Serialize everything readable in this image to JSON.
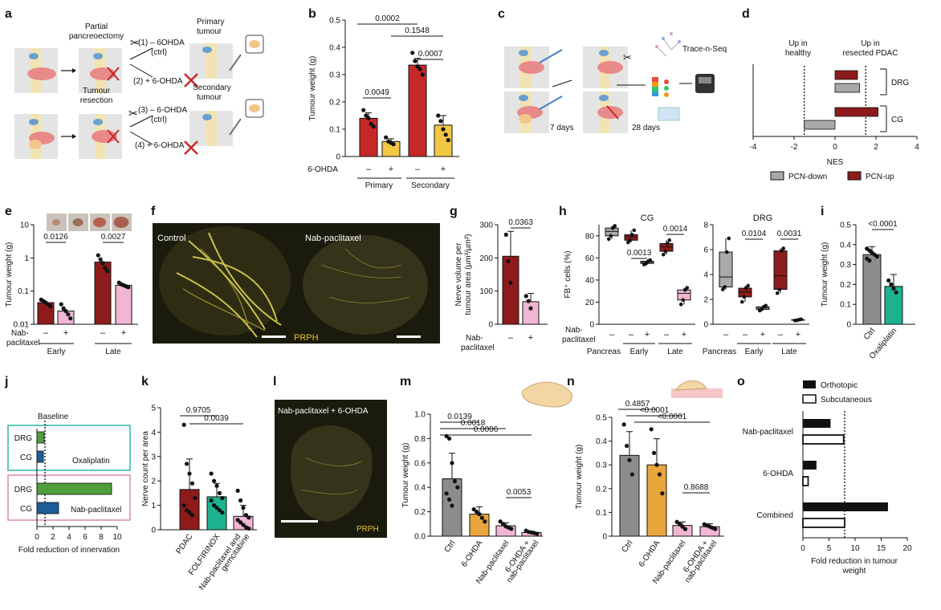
{
  "colors": {
    "red": "#c62828",
    "yellow": "#f2c744",
    "darkred": "#8e1b1b",
    "pink": "#f0b6d3",
    "grey": "#8c8c8c",
    "teal": "#1db38f",
    "green": "#4f9e3c",
    "blue": "#1f5c99",
    "orange": "#e9a63c",
    "tealBox": "#2fb5a5",
    "pinkBox": "#d987b5",
    "micro": "#1a1a0d",
    "nerve": "#e6dc52"
  },
  "panels": {
    "a": {
      "label": "a",
      "partial": "Partial",
      "pancreatectomy": "pancreoectomy",
      "t1": "(1) – 6OHDA",
      "ctrl": "(ctrl)",
      "t2": "(2) + 6-OHDA",
      "primary": "Primary",
      "tumour": "tumour",
      "resection1": "Tumour",
      "resection2": "resection",
      "t3": "(3) – 6-OHDA",
      "t4": "(4) + 6-OHDA",
      "secondary": "Secondary"
    },
    "b": {
      "label": "b",
      "ylabel": "Tumour weight (g)",
      "treat_label": "6-OHDA",
      "groups": [
        "Primary",
        "Secondary"
      ],
      "minus": "–",
      "plus": "+",
      "pvals": [
        "0.0002",
        "0.1548",
        "0.0007",
        "0.0049"
      ]
    },
    "c": {
      "label": "c",
      "seq": "Trace-n-Seq",
      "d7": "7 days",
      "d28": "28 days"
    },
    "d": {
      "label": "d",
      "up_healthy_1": "Up in",
      "up_healthy_2": "healthy",
      "up_resect_1": "Up in",
      "up_resect_2": "resected PDAC",
      "xlabel": "NES",
      "rows": [
        "DRG",
        "CG"
      ],
      "legend_down": "PCN-down",
      "legend_up": "PCN-up"
    },
    "e": {
      "label": "e",
      "ylabel": "Tumour weight (g)",
      "treat_1": "Nab-",
      "treat_2": "paclitaxel",
      "groups": [
        "Early",
        "Late"
      ],
      "pvals": [
        "0.0126",
        "0.0027"
      ]
    },
    "f": {
      "label": "f",
      "left": "Control",
      "right": "Nab-paclitaxel",
      "stain": "PRPH"
    },
    "g": {
      "label": "g",
      "ylabel_1": "Nerve volume per",
      "ylabel_2": "tumour area (µm³/µm²)",
      "treat_1": "Nab-",
      "treat_2": "paclitaxel",
      "pval": "0.0363"
    },
    "h": {
      "label": "h",
      "sub1": "CG",
      "sub2": "DRG",
      "ylabel": "FB⁺ cells (%)",
      "treat_1": "Nab-",
      "treat_2": "paclitaxel",
      "groups": [
        "Pancreas",
        "Early",
        "Late"
      ],
      "pvals_cg": [
        "0.0013",
        "0.0014"
      ],
      "pvals_drg": [
        "0.0104",
        "0.0031"
      ]
    },
    "i": {
      "label": "i",
      "ylabel": "Tumour weight (g)",
      "cats": [
        "Ctrl",
        "Oxaliplatin"
      ],
      "pval": "<0.0001"
    },
    "j": {
      "label": "j",
      "baseline": "Baseline",
      "rows": [
        "DRG",
        "CG",
        "DRG",
        "CG"
      ],
      "box1": "Oxaliplatin",
      "box2": "Nab-paclitaxel",
      "xlabel": "Fold reduction of innervation"
    },
    "k": {
      "label": "k",
      "ylabel": "Nerve count per area",
      "cats": [
        "PDAC",
        "FOLFIRINOX",
        "Nab-paclitaxel and",
        "gemcitabine"
      ],
      "pvals": [
        "0.9705",
        "0.0039"
      ]
    },
    "l": {
      "label": "l",
      "title": "Nab-paclitaxel + 6-OHDA",
      "stain": "PRPH"
    },
    "m": {
      "label": "m",
      "ylabel": "Tumour weight (g)",
      "cats": [
        "Ctrl",
        "6-OHDA",
        "Nab-paclitaxel",
        "6-OHDA +",
        "nab-paclitaxel"
      ],
      "pvals": [
        "0.0139",
        "0.0018",
        "0.0006",
        "0.0053"
      ]
    },
    "n": {
      "label": "n",
      "ylabel": "Tumour weight (g)",
      "cats": [
        "Ctrl",
        "6-OHDA",
        "Nab-paclitaxel",
        "6-OHDA +",
        "nab-paclitaxel"
      ],
      "pvals": [
        "0.4857",
        "<0.0001",
        "<0.0001",
        "0.8688"
      ]
    },
    "o": {
      "label": "o",
      "legend1": "Orthotopic",
      "legend2": "Subcutaneous",
      "rows": [
        "Nab-paclitaxel",
        "6-OHDA",
        "Combined"
      ],
      "xlabel_1": "Fold reduction in tumour",
      "xlabel_2": "weight"
    }
  },
  "chart_data": [
    {
      "panel": "b",
      "type": "bar",
      "categories": [
        "Primary –",
        "Primary +",
        "Secondary –",
        "Secondary +"
      ],
      "values": [
        0.14,
        0.055,
        0.335,
        0.115
      ],
      "errors": [
        0.02,
        0.01,
        0.025,
        0.035
      ],
      "points": [
        [
          0.17,
          0.15,
          0.14,
          0.12,
          0.11
        ],
        [
          0.07,
          0.055,
          0.05,
          0.045
        ],
        [
          0.38,
          0.35,
          0.33,
          0.32,
          0.3
        ],
        [
          0.15,
          0.13,
          0.1,
          0.08,
          0.06
        ]
      ],
      "ylim": [
        0,
        0.5
      ],
      "yticks": [
        0,
        0.1,
        0.2,
        0.3,
        0.4,
        0.5
      ]
    },
    {
      "panel": "d",
      "type": "bar",
      "orientation": "horizontal",
      "series": [
        {
          "name": "PCN-down",
          "rows": [
            "DRG",
            "CG"
          ],
          "values": [
            1.2,
            -1.5
          ]
        },
        {
          "name": "PCN-up",
          "rows": [
            "DRG",
            "CG"
          ],
          "values": [
            1.1,
            2.1
          ]
        }
      ],
      "xlim": [
        -4,
        4
      ],
      "xticks": [
        -4,
        -2,
        0,
        2,
        4
      ]
    },
    {
      "panel": "e",
      "type": "bar",
      "log": true,
      "categories": [
        "Early –",
        "Early +",
        "Late –",
        "Late +"
      ],
      "values": [
        0.045,
        0.025,
        0.75,
        0.15
      ],
      "points": [
        [
          0.055,
          0.05,
          0.045,
          0.04,
          0.035
        ],
        [
          0.04,
          0.03,
          0.025,
          0.02,
          0.015
        ],
        [
          1.2,
          0.9,
          0.7,
          0.5,
          0.4
        ],
        [
          0.18,
          0.16,
          0.15,
          0.14,
          0.13
        ]
      ],
      "ylim": [
        0.01,
        10
      ],
      "yticks": [
        0.01,
        0.1,
        1,
        10
      ]
    },
    {
      "panel": "g",
      "type": "bar",
      "categories": [
        "–",
        "+"
      ],
      "values": [
        205,
        68
      ],
      "errors": [
        75,
        25
      ],
      "points": [
        [
          270,
          190,
          125
        ],
        [
          85,
          70,
          48
        ]
      ],
      "ylim": [
        0,
        300
      ],
      "yticks": [
        0,
        100,
        200,
        300
      ]
    },
    {
      "panel": "h",
      "subtitle": "CG",
      "type": "box",
      "categories": [
        "Pancreas",
        "Early –",
        "Early +",
        "Late –",
        "Late +"
      ],
      "boxes": [
        [
          77,
          80,
          84,
          87,
          89
        ],
        [
          74,
          76,
          79,
          81,
          85
        ],
        [
          54,
          55,
          56,
          57,
          58
        ],
        [
          63,
          66,
          70,
          73,
          76
        ],
        [
          18,
          22,
          28,
          31,
          33
        ]
      ],
      "ylim": [
        0,
        90
      ],
      "yticks": [
        0,
        20,
        40,
        60,
        80
      ]
    },
    {
      "panel": "h",
      "subtitle": "DRG",
      "type": "box",
      "categories": [
        "Pancreas",
        "Early –",
        "Early +",
        "Late –",
        "Late +"
      ],
      "boxes": [
        [
          2.8,
          3,
          3.8,
          5.8,
          6.9
        ],
        [
          1.8,
          2.2,
          2.6,
          2.9,
          3.1
        ],
        [
          1.1,
          1.2,
          1.3,
          1.4,
          1.5
        ],
        [
          2.5,
          2.8,
          3.9,
          5.9,
          6.1
        ],
        [
          0.3,
          0.32,
          0.35,
          0.37,
          0.4
        ]
      ],
      "ylim": [
        0,
        8
      ],
      "yticks": [
        0,
        2,
        4,
        6,
        8
      ]
    },
    {
      "panel": "i",
      "type": "bar",
      "categories": [
        "Ctrl",
        "Oxaliplatin"
      ],
      "values": [
        0.35,
        0.19
      ],
      "errors": [
        0.04,
        0.06
      ],
      "points": [
        [
          0.38,
          0.37,
          0.36,
          0.35,
          0.34,
          0.33,
          0.32
        ],
        [
          0.22,
          0.2,
          0.18,
          0.16
        ]
      ],
      "ylim": [
        0,
        0.5
      ],
      "yticks": [
        0,
        0.1,
        0.2,
        0.3,
        0.4,
        0.5
      ]
    },
    {
      "panel": "j",
      "type": "bar",
      "orientation": "horizontal",
      "rows": [
        "DRG",
        "CG",
        "DRG",
        "CG"
      ],
      "groups": [
        "Oxaliplatin",
        "Oxaliplatin",
        "Nab-paclitaxel",
        "Nab-paclitaxel"
      ],
      "values": [
        0.9,
        0.8,
        9.3,
        2.7
      ],
      "baseline": 1,
      "xlim": [
        0,
        10
      ],
      "xticks": [
        0,
        2,
        4,
        6,
        8,
        10
      ]
    },
    {
      "panel": "k",
      "type": "bar",
      "categories": [
        "PDAC",
        "FOLFIRINOX",
        "Nab-paclitaxel and gemcitabine"
      ],
      "values": [
        1.65,
        1.35,
        0.55
      ],
      "errors": [
        1.25,
        0.55,
        0.45
      ],
      "points": [
        [
          4.3,
          2.7,
          2.3,
          1.9,
          1.3,
          1.0,
          0.8,
          0.7,
          0.6
        ],
        [
          2.3,
          2.0,
          1.8,
          1.5,
          1.3,
          1.2,
          1.0,
          0.9,
          0.8,
          0.7
        ],
        [
          1.6,
          1.2,
          0.9,
          0.6,
          0.5,
          0.4,
          0.3,
          0.2,
          0.1,
          0.05
        ]
      ],
      "ylim": [
        0,
        5
      ],
      "yticks": [
        0,
        1,
        2,
        3,
        4,
        5
      ]
    },
    {
      "panel": "m",
      "type": "bar",
      "categories": [
        "Ctrl",
        "6-OHDA",
        "Nab-paclitaxel",
        "6-OHDA + nab-paclitaxel"
      ],
      "values": [
        0.47,
        0.18,
        0.085,
        0.03
      ],
      "errors": [
        0.21,
        0.06,
        0.025,
        0.01
      ],
      "points": [
        [
          0.82,
          0.8,
          0.6,
          0.45,
          0.4,
          0.35,
          0.3,
          0.25
        ],
        [
          0.22,
          0.2,
          0.18,
          0.15,
          0.12
        ],
        [
          0.12,
          0.1,
          0.08,
          0.07,
          0.06
        ],
        [
          0.045,
          0.035,
          0.03,
          0.025,
          0.02
        ]
      ],
      "ylim": [
        0,
        1.0
      ],
      "yticks": [
        0,
        0.2,
        0.4,
        0.6,
        0.8,
        1.0
      ]
    },
    {
      "panel": "n",
      "type": "bar",
      "categories": [
        "Ctrl",
        "6-OHDA",
        "Nab-paclitaxel",
        "6-OHDA + nab-paclitaxel"
      ],
      "values": [
        0.34,
        0.3,
        0.045,
        0.04
      ],
      "errors": [
        0.1,
        0.11,
        0.015,
        0.012
      ],
      "points": [
        [
          0.47,
          0.38,
          0.32,
          0.26
        ],
        [
          0.45,
          0.35,
          0.3,
          0.26,
          0.18
        ],
        [
          0.06,
          0.05,
          0.04,
          0.03
        ],
        [
          0.05,
          0.045,
          0.04,
          0.035,
          0.03
        ]
      ],
      "ylim": [
        0,
        0.5
      ],
      "yticks": [
        0,
        0.1,
        0.2,
        0.3,
        0.4,
        0.5
      ]
    },
    {
      "panel": "o",
      "type": "bar",
      "orientation": "horizontal",
      "rows": [
        "Nab-paclitaxel",
        "6-OHDA",
        "Combined"
      ],
      "series": [
        {
          "name": "Orthotopic",
          "values": [
            5.3,
            2.6,
            16.3
          ]
        },
        {
          "name": "Subcutaneous",
          "values": [
            7.8,
            1.0,
            8.0
          ]
        }
      ],
      "baseline": 8,
      "xlim": [
        0,
        20
      ],
      "xticks": [
        0,
        5,
        10,
        15,
        20
      ]
    }
  ]
}
